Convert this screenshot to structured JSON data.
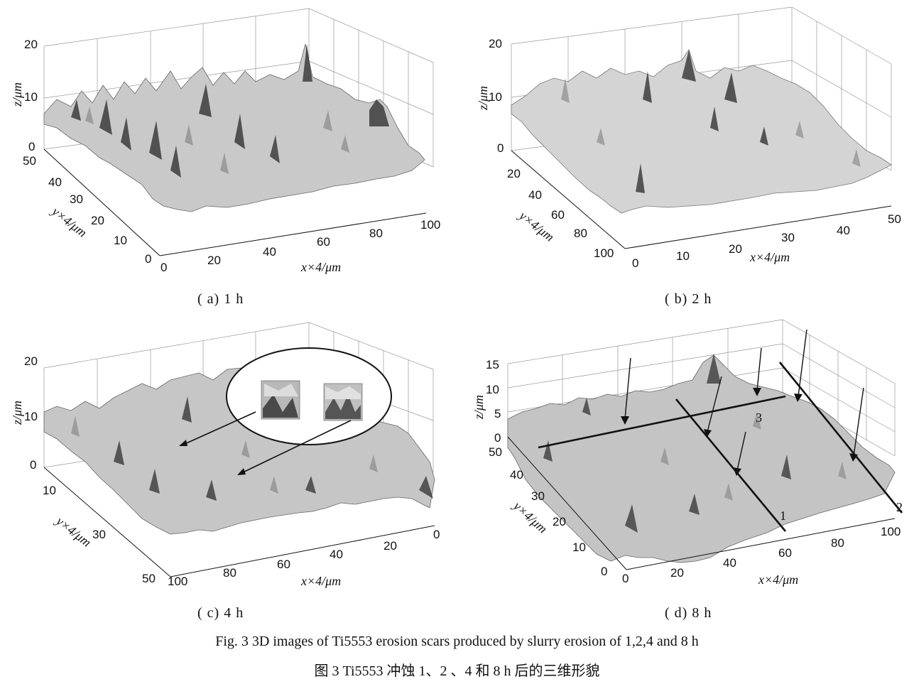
{
  "figure": {
    "caption_en": "Fig. 3    3D images of Ti5553 erosion scars produced by slurry erosion of 1,2,4 and 8 h",
    "caption_cn": "图 3    Ti5553 冲蚀 1、2 、4 和 8 h 后的三维形貌"
  },
  "panels": [
    {
      "caption": "( a)  1 h",
      "z_label": "z/μm",
      "y_label": "y×4/μm",
      "x_label": "x×4/μm",
      "z_ticks": [
        "20",
        "10",
        "0"
      ],
      "y_ticks": [
        "50",
        "40",
        "30",
        "20",
        "10",
        "0"
      ],
      "x_ticks": [
        "0",
        "20",
        "40",
        "60",
        "80",
        "100"
      ]
    },
    {
      "caption": "( b)  2 h",
      "z_label": "z/μm",
      "y_label": "y×4/μm",
      "x_label": "x×4/μm",
      "z_ticks": [
        "20",
        "10",
        "0"
      ],
      "y_ticks": [
        "20",
        "40",
        "60",
        "80",
        "100"
      ],
      "x_ticks": [
        "0",
        "10",
        "20",
        "30",
        "40",
        "50"
      ]
    },
    {
      "caption": "( c)  4 h",
      "z_label": "z/μm",
      "y_label": "y×4/μm",
      "x_label": "x×4/μm",
      "z_ticks": [
        "20",
        "10",
        "0"
      ],
      "y_ticks": [
        "10",
        "30",
        "50"
      ],
      "x_ticks": [
        "100",
        "80",
        "60",
        "40",
        "20",
        "0"
      ]
    },
    {
      "caption": "( d)  8 h",
      "z_label": "z/μm",
      "y_label": "y×4/μm",
      "x_label": "x×4/μm",
      "z_ticks": [
        "15",
        "10",
        "5",
        "0"
      ],
      "y_ticks": [
        "50",
        "40",
        "30",
        "20",
        "10",
        "0"
      ],
      "x_ticks": [
        "0",
        "20",
        "40",
        "60",
        "80",
        "100"
      ],
      "line_labels": [
        "1",
        "2",
        "3"
      ]
    }
  ]
}
